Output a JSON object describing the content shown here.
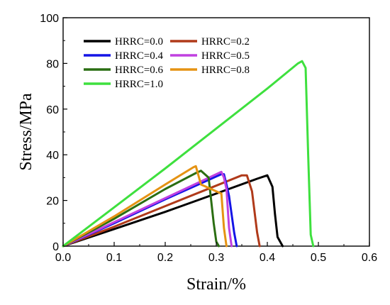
{
  "chart_data": {
    "type": "line",
    "xlabel": "Strain/%",
    "ylabel": "Stress/MPa",
    "xlim": [
      0.0,
      0.6
    ],
    "ylim": [
      0,
      100
    ],
    "xticks": [
      "0.0",
      "0.1",
      "0.2",
      "0.3",
      "0.4",
      "0.5",
      "0.6"
    ],
    "yticks": [
      "0",
      "20",
      "40",
      "60",
      "80",
      "100"
    ],
    "grid": false,
    "legend_position": "top-left",
    "series": [
      {
        "name": "HRRC=0.0",
        "color": "#000000",
        "x": [
          0.0,
          0.1,
          0.2,
          0.3,
          0.38,
          0.4,
          0.41,
          0.415,
          0.42,
          0.43
        ],
        "y": [
          0,
          7.5,
          15,
          23,
          29.5,
          31,
          26,
          14,
          4,
          0
        ]
      },
      {
        "name": "HRRC=0.2",
        "color": "#b03a1a",
        "x": [
          0.0,
          0.1,
          0.2,
          0.3,
          0.35,
          0.36,
          0.37,
          0.38,
          0.385
        ],
        "y": [
          0,
          8.5,
          17.5,
          26.5,
          31,
          31,
          24,
          6,
          0
        ]
      },
      {
        "name": "HRRC=0.4",
        "color": "#1414e6",
        "x": [
          0.0,
          0.1,
          0.2,
          0.3,
          0.31,
          0.315,
          0.32,
          0.325,
          0.335,
          0.34
        ],
        "y": [
          0,
          10,
          20.5,
          30.5,
          31.5,
          31.5,
          27,
          22,
          6,
          0
        ]
      },
      {
        "name": "HRRC=0.5",
        "color": "#c040e0",
        "x": [
          0.0,
          0.1,
          0.2,
          0.3,
          0.31,
          0.315,
          0.32,
          0.325,
          0.33
        ],
        "y": [
          0,
          10.5,
          21,
          31.5,
          32.5,
          30,
          25,
          8,
          0
        ]
      },
      {
        "name": "HRRC=0.6",
        "color": "#2a6e12",
        "x": [
          0.0,
          0.1,
          0.2,
          0.26,
          0.27,
          0.285,
          0.295,
          0.3,
          0.305
        ],
        "y": [
          0,
          12,
          25,
          32,
          33,
          30,
          10,
          2,
          0
        ]
      },
      {
        "name": "HRRC=0.8",
        "color": "#e59313",
        "x": [
          0.0,
          0.1,
          0.2,
          0.255,
          0.26,
          0.27,
          0.285,
          0.3,
          0.31,
          0.315,
          0.32
        ],
        "y": [
          0,
          13,
          27,
          34.5,
          35,
          27,
          25.5,
          24,
          23,
          8,
          0
        ]
      },
      {
        "name": "HRRC=1.0",
        "color": "#3ee03e",
        "x": [
          0.0,
          0.1,
          0.2,
          0.3,
          0.4,
          0.46,
          0.468,
          0.475,
          0.48,
          0.485,
          0.49
        ],
        "y": [
          0,
          17,
          34,
          51.5,
          69,
          80,
          81,
          78,
          40,
          5,
          0
        ]
      }
    ]
  }
}
